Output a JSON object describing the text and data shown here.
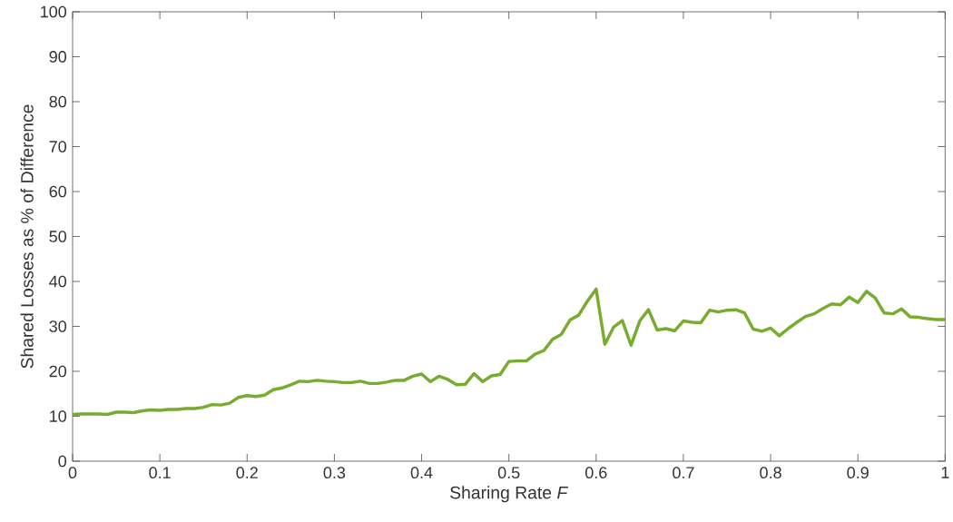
{
  "chart_data": {
    "type": "line",
    "xlabel": "Sharing Rate *F*",
    "ylabel": "Shared Losses as % of Difference",
    "x": [
      0,
      0.01,
      0.02,
      0.03,
      0.04,
      0.05,
      0.06,
      0.07,
      0.08,
      0.09,
      0.1,
      0.11,
      0.12,
      0.13,
      0.14,
      0.15,
      0.16,
      0.17,
      0.18,
      0.19,
      0.2,
      0.21,
      0.22,
      0.23,
      0.24,
      0.25,
      0.26,
      0.27,
      0.28,
      0.29,
      0.3,
      0.31,
      0.32,
      0.33,
      0.34,
      0.35,
      0.36,
      0.37,
      0.38,
      0.39,
      0.4,
      0.41,
      0.42,
      0.43,
      0.44,
      0.45,
      0.46,
      0.47,
      0.48,
      0.49,
      0.5,
      0.51,
      0.52,
      0.53,
      0.54,
      0.55,
      0.56,
      0.57,
      0.58,
      0.59,
      0.6,
      0.61,
      0.62,
      0.63,
      0.64,
      0.65,
      0.66,
      0.67,
      0.68,
      0.69,
      0.7,
      0.71,
      0.72,
      0.73,
      0.74,
      0.75,
      0.76,
      0.77,
      0.78,
      0.79,
      0.8,
      0.81,
      0.82,
      0.83,
      0.84,
      0.85,
      0.86,
      0.87,
      0.88,
      0.89,
      0.9,
      0.91,
      0.92,
      0.93,
      0.94,
      0.95,
      0.96,
      0.97,
      0.98,
      0.99,
      1
    ],
    "series": [
      {
        "color": "#77ac30",
        "values": [
          10.4,
          10.5,
          10.5,
          10.5,
          10.4,
          10.9,
          10.9,
          10.8,
          11.2,
          11.4,
          11.3,
          11.5,
          11.5,
          11.7,
          11.7,
          12.0,
          12.6,
          12.5,
          12.9,
          14.2,
          14.6,
          14.4,
          14.7,
          15.9,
          16.3,
          17.0,
          17.8,
          17.7,
          18.0,
          17.8,
          17.7,
          17.5,
          17.5,
          17.8,
          17.3,
          17.3,
          17.6,
          18.0,
          18.0,
          18.9,
          19.4,
          17.7,
          18.9,
          18.2,
          17.0,
          17.1,
          19.5,
          17.7,
          19.0,
          19.3,
          22.2,
          22.3,
          22.3,
          23.8,
          24.6,
          27.1,
          28.2,
          31.4,
          32.5,
          35.6,
          38.3,
          26.0,
          29.8,
          31.3,
          25.8,
          31.2,
          33.7,
          29.2,
          29.5,
          29.0,
          31.2,
          30.9,
          30.8,
          33.6,
          33.2,
          33.6,
          33.7,
          33.0,
          29.4,
          28.9,
          29.6,
          27.9,
          29.5,
          30.9,
          32.2,
          32.8,
          34.0,
          35.0,
          34.8,
          36.5,
          35.3,
          37.8,
          36.3,
          33.0,
          32.8,
          33.9,
          32.1,
          32.0,
          31.7,
          31.5,
          31.5
        ]
      }
    ],
    "xlim": [
      0,
      1
    ],
    "ylim": [
      0,
      100
    ],
    "xticks": [
      0,
      0.1,
      0.2,
      0.3,
      0.4,
      0.5,
      0.6,
      0.7,
      0.8,
      0.9,
      1
    ],
    "yticks": [
      0,
      10,
      20,
      30,
      40,
      50,
      60,
      70,
      80,
      90,
      100
    ],
    "grid": false
  }
}
